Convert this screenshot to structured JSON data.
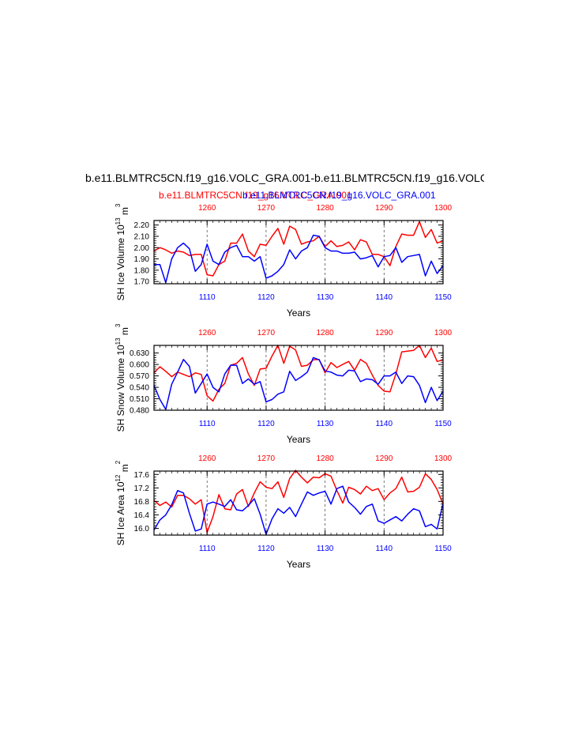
{
  "header": {
    "title": "b.e11.BLMTRC5CN.f19_g16.VOLC_GRA.001-b.e11.BLMTRC5CN.f19_g16.VOLC",
    "subtitle_red": "b.e11.BLMTRC5CN.f19_g16.VOLC_GRA.001",
    "subtitle_blue": "b.e11.BLMTRC5CN.f19_g16.VOLC_GRA.001"
  },
  "colors": {
    "red": "#ff0000",
    "blue": "#0000ff",
    "axis": "#000000"
  },
  "chart_data": [
    {
      "type": "line",
      "ylabel_main": "SH Ice Volume 10",
      "ylabel_exp": "13",
      "ylabel_unit": "m",
      "ylabel_unit_exp": "3",
      "xlabel": "Years",
      "ylim": [
        1.68,
        2.24
      ],
      "yticks": [
        "1.70",
        "1.80",
        "1.90",
        "2.00",
        "2.10",
        "2.20"
      ],
      "xlim_bottom": [
        1101,
        1150
      ],
      "xticks_bottom": [
        "1110",
        "1120",
        "1130",
        "1140",
        "1150"
      ],
      "xlim_top": [
        1251,
        1300
      ],
      "xticks_top": [
        "1260",
        "1270",
        "1280",
        "1290",
        "1300"
      ],
      "series": [
        {
          "color": "#ff0000",
          "axis": "top",
          "x": [
            1251,
            1252,
            1253,
            1254,
            1255,
            1256,
            1257,
            1258,
            1259,
            1260,
            1261,
            1262,
            1263,
            1264,
            1265,
            1266,
            1267,
            1268,
            1269,
            1270,
            1271,
            1272,
            1273,
            1274,
            1275,
            1276,
            1277,
            1278,
            1279,
            1280,
            1281,
            1282,
            1283,
            1284,
            1285,
            1286,
            1287,
            1288,
            1289,
            1290,
            1291,
            1292,
            1293,
            1294,
            1295,
            1296,
            1297,
            1298,
            1299,
            1300
          ],
          "values": [
            1.97,
            2.0,
            1.98,
            1.95,
            1.97,
            1.96,
            1.93,
            1.94,
            1.94,
            1.76,
            1.75,
            1.85,
            1.88,
            2.04,
            2.04,
            2.12,
            1.97,
            1.92,
            2.03,
            2.02,
            2.1,
            2.17,
            2.03,
            2.19,
            2.16,
            2.03,
            2.05,
            2.06,
            2.1,
            2.01,
            2.06,
            2.01,
            2.02,
            2.05,
            1.98,
            2.07,
            2.05,
            1.94,
            1.94,
            1.92,
            1.84,
            2.01,
            2.12,
            2.11,
            2.11,
            2.23,
            2.09,
            2.16,
            2.04,
            2.06
          ]
        },
        {
          "color": "#0000ff",
          "axis": "bottom",
          "x": [
            1101,
            1102,
            1103,
            1104,
            1105,
            1106,
            1107,
            1108,
            1109,
            1110,
            1111,
            1112,
            1113,
            1114,
            1115,
            1116,
            1117,
            1118,
            1119,
            1120,
            1121,
            1122,
            1123,
            1124,
            1125,
            1126,
            1127,
            1128,
            1129,
            1130,
            1131,
            1132,
            1133,
            1134,
            1135,
            1136,
            1137,
            1138,
            1139,
            1140,
            1141,
            1142,
            1143,
            1144,
            1145,
            1146,
            1147,
            1148,
            1149,
            1150
          ],
          "values": [
            1.85,
            1.85,
            1.69,
            1.9,
            2.0,
            2.04,
            1.99,
            1.79,
            1.85,
            2.03,
            1.88,
            1.85,
            1.96,
            2.0,
            2.02,
            1.92,
            1.92,
            1.88,
            1.92,
            1.73,
            1.75,
            1.79,
            1.85,
            1.98,
            1.9,
            1.97,
            2.0,
            2.11,
            2.1,
            2.0,
            1.97,
            1.97,
            1.95,
            1.95,
            1.96,
            1.9,
            1.91,
            1.93,
            1.83,
            1.92,
            1.93,
            2.0,
            1.87,
            1.92,
            1.93,
            1.94,
            1.75,
            1.88,
            1.77,
            1.84
          ]
        }
      ]
    },
    {
      "type": "line",
      "ylabel_main": "SH Snow Volume 10",
      "ylabel_exp": "13",
      "ylabel_unit": "m",
      "ylabel_unit_exp": "3",
      "xlabel": "Years",
      "ylim": [
        0.48,
        0.65
      ],
      "yticks": [
        "0.480",
        "0.510",
        "0.540",
        "0.570",
        "0.600",
        "0.630"
      ],
      "xlim_bottom": [
        1101,
        1150
      ],
      "xticks_bottom": [
        "1110",
        "1120",
        "1130",
        "1140",
        "1150"
      ],
      "xlim_top": [
        1251,
        1300
      ],
      "xticks_top": [
        "1260",
        "1270",
        "1280",
        "1290",
        "1300"
      ],
      "series": [
        {
          "color": "#ff0000",
          "axis": "top",
          "x": [
            1251,
            1252,
            1253,
            1254,
            1255,
            1256,
            1257,
            1258,
            1259,
            1260,
            1261,
            1262,
            1263,
            1264,
            1265,
            1266,
            1267,
            1268,
            1269,
            1270,
            1271,
            1272,
            1273,
            1274,
            1275,
            1276,
            1277,
            1278,
            1279,
            1280,
            1281,
            1282,
            1283,
            1284,
            1285,
            1286,
            1287,
            1288,
            1289,
            1290,
            1291,
            1292,
            1293,
            1294,
            1295,
            1296,
            1297,
            1298,
            1299,
            1300
          ],
          "values": [
            0.578,
            0.594,
            0.582,
            0.568,
            0.58,
            0.574,
            0.568,
            0.578,
            0.574,
            0.518,
            0.504,
            0.535,
            0.55,
            0.598,
            0.603,
            0.618,
            0.575,
            0.545,
            0.588,
            0.59,
            0.622,
            0.65,
            0.603,
            0.648,
            0.638,
            0.595,
            0.598,
            0.612,
            0.613,
            0.578,
            0.605,
            0.592,
            0.6,
            0.608,
            0.585,
            0.613,
            0.603,
            0.572,
            0.545,
            0.53,
            0.528,
            0.575,
            0.633,
            0.635,
            0.637,
            0.65,
            0.618,
            0.643,
            0.608,
            0.612
          ]
        },
        {
          "color": "#0000ff",
          "axis": "bottom",
          "x": [
            1101,
            1102,
            1103,
            1104,
            1105,
            1106,
            1107,
            1108,
            1109,
            1110,
            1111,
            1112,
            1113,
            1114,
            1115,
            1116,
            1117,
            1118,
            1119,
            1120,
            1121,
            1122,
            1123,
            1124,
            1125,
            1126,
            1127,
            1128,
            1129,
            1130,
            1131,
            1132,
            1133,
            1134,
            1135,
            1136,
            1137,
            1138,
            1139,
            1140,
            1141,
            1142,
            1143,
            1144,
            1145,
            1146,
            1147,
            1148,
            1149,
            1150
          ],
          "values": [
            0.545,
            0.508,
            0.482,
            0.548,
            0.58,
            0.613,
            0.595,
            0.525,
            0.55,
            0.575,
            0.54,
            0.528,
            0.575,
            0.598,
            0.598,
            0.55,
            0.562,
            0.548,
            0.555,
            0.502,
            0.508,
            0.522,
            0.528,
            0.582,
            0.558,
            0.568,
            0.58,
            0.618,
            0.612,
            0.583,
            0.58,
            0.572,
            0.57,
            0.585,
            0.583,
            0.555,
            0.562,
            0.56,
            0.548,
            0.57,
            0.57,
            0.58,
            0.55,
            0.57,
            0.568,
            0.545,
            0.5,
            0.54,
            0.505,
            0.53
          ]
        }
      ]
    },
    {
      "type": "line",
      "ylabel_main": "SH Ice Area 10",
      "ylabel_exp": "12",
      "ylabel_unit": "m",
      "ylabel_unit_exp": "2",
      "xlabel": "Years",
      "ylim": [
        15.8,
        17.7
      ],
      "yticks": [
        "16.0",
        "16.4",
        "16.8",
        "17.2",
        "17.6"
      ],
      "xlim_bottom": [
        1101,
        1150
      ],
      "xticks_bottom": [
        "1110",
        "1120",
        "1130",
        "1140",
        "1150"
      ],
      "xlim_top": [
        1251,
        1300
      ],
      "xticks_top": [
        "1260",
        "1270",
        "1280",
        "1290",
        "1300"
      ],
      "series": [
        {
          "color": "#ff0000",
          "axis": "top",
          "x": [
            1251,
            1252,
            1253,
            1254,
            1255,
            1256,
            1257,
            1258,
            1259,
            1260,
            1261,
            1262,
            1263,
            1264,
            1265,
            1266,
            1267,
            1268,
            1269,
            1270,
            1271,
            1272,
            1273,
            1274,
            1275,
            1276,
            1277,
            1278,
            1279,
            1280,
            1281,
            1282,
            1283,
            1284,
            1285,
            1286,
            1287,
            1288,
            1289,
            1290,
            1291,
            1292,
            1293,
            1294,
            1295,
            1296,
            1297,
            1298,
            1299,
            1300
          ],
          "values": [
            16.83,
            16.68,
            16.78,
            16.63,
            16.98,
            16.98,
            16.88,
            16.72,
            16.85,
            15.88,
            16.35,
            17.0,
            16.58,
            16.55,
            17.02,
            17.15,
            16.65,
            17.05,
            17.38,
            17.22,
            17.18,
            17.38,
            16.92,
            17.48,
            17.72,
            17.52,
            17.35,
            17.52,
            17.5,
            17.62,
            17.55,
            17.12,
            16.75,
            17.22,
            17.15,
            17.02,
            17.25,
            17.12,
            17.18,
            16.85,
            17.05,
            17.18,
            17.52,
            17.08,
            17.1,
            17.22,
            17.62,
            17.45,
            17.15,
            16.72
          ]
        },
        {
          "color": "#0000ff",
          "axis": "bottom",
          "x": [
            1101,
            1102,
            1103,
            1104,
            1105,
            1106,
            1107,
            1108,
            1109,
            1110,
            1111,
            1112,
            1113,
            1114,
            1115,
            1116,
            1117,
            1118,
            1119,
            1120,
            1121,
            1122,
            1123,
            1124,
            1125,
            1126,
            1127,
            1128,
            1129,
            1130,
            1131,
            1132,
            1133,
            1134,
            1135,
            1136,
            1137,
            1138,
            1139,
            1140,
            1141,
            1142,
            1143,
            1144,
            1145,
            1146,
            1147,
            1148,
            1149,
            1150
          ],
          "values": [
            15.95,
            16.25,
            16.4,
            16.7,
            17.12,
            17.05,
            16.45,
            15.92,
            15.98,
            16.72,
            16.78,
            16.72,
            16.65,
            16.85,
            16.55,
            16.52,
            16.68,
            16.88,
            16.42,
            15.82,
            16.28,
            16.58,
            16.45,
            16.62,
            16.35,
            16.72,
            17.08,
            16.98,
            17.05,
            17.1,
            16.72,
            17.18,
            17.25,
            16.78,
            16.62,
            16.42,
            16.65,
            16.72,
            16.22,
            16.15,
            16.25,
            16.35,
            16.22,
            16.42,
            16.58,
            16.52,
            16.05,
            16.12,
            15.98,
            16.75
          ]
        }
      ]
    }
  ]
}
